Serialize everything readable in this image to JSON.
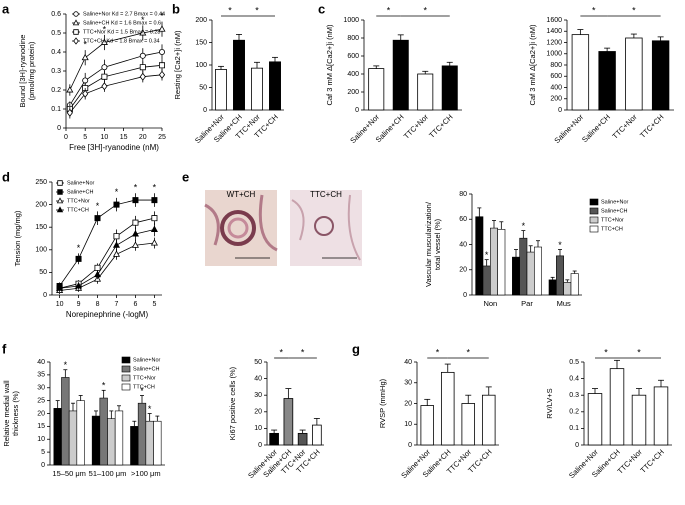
{
  "chart_data": [
    {
      "type": "line",
      "panel_label": "a",
      "ylabel": [
        "Bound [3H]-ryanodine",
        "(pmol/mg protein)"
      ],
      "xlabel": "Free [3H]-ryanodine (nM)",
      "x": [
        1,
        5,
        10,
        20,
        25
      ],
      "xlim": [
        0,
        25
      ],
      "xticks": [
        0,
        5,
        10,
        15,
        20,
        25
      ],
      "ylim": [
        0,
        0.6
      ],
      "yticks": [
        0,
        0.1,
        0.2,
        0.3,
        0.4,
        0.5,
        0.6
      ],
      "legend": "upper left",
      "series": [
        {
          "name": "Saline+Nor Kd = 2.7 Bmax = 0.44",
          "marker": "circle",
          "fill": "#ffffff",
          "color": "#000000",
          "values": [
            0.12,
            0.25,
            0.32,
            0.38,
            0.4
          ],
          "errors": [
            0.02,
            0.04,
            0.04,
            0.04,
            0.04
          ]
        },
        {
          "name": "Saline+CH Kd = 1.6 Bmax = 0.6",
          "marker": "triangle",
          "fill": "#ffffff",
          "color": "#000000",
          "values": [
            0.2,
            0.37,
            0.45,
            0.5,
            0.52
          ],
          "errors": [
            0.03,
            0.04,
            0.04,
            0.04,
            0.04
          ]
        },
        {
          "name": "TTC+Nor Kd = 1.5 Bmax = 0.28",
          "marker": "square",
          "fill": "#ffffff",
          "color": "#000000",
          "values": [
            0.1,
            0.21,
            0.27,
            0.32,
            0.33
          ],
          "errors": [
            0.03,
            0.03,
            0.03,
            0.03,
            0.03
          ]
        },
        {
          "name": "TTC+CH Kd = 1.8 Bmax = 0.34",
          "marker": "diamond",
          "fill": "#ffffff",
          "color": "#000000",
          "values": [
            0.08,
            0.18,
            0.22,
            0.27,
            0.28
          ],
          "errors": [
            0.03,
            0.03,
            0.03,
            0.03,
            0.03
          ]
        }
      ],
      "annotations": [
        {
          "series": 1,
          "index": 1,
          "text": "*"
        },
        {
          "series": 1,
          "index": 2,
          "text": "*"
        },
        {
          "series": 1,
          "index": 3,
          "text": "*"
        },
        {
          "series": 1,
          "index": 4,
          "text": "*"
        }
      ]
    },
    {
      "type": "bar",
      "panel_label": "b",
      "ylabel": "Resting [Ca2+]i (nM)",
      "categories": [
        "Saline+Nor",
        "Saline+CH",
        "TTC+Nor",
        "TTC+CH"
      ],
      "values": [
        90,
        155,
        93,
        107
      ],
      "errors": [
        7,
        13,
        13,
        10
      ],
      "colors": [
        "#ffffff",
        "#000000",
        "#ffffff",
        "#000000"
      ],
      "ylim": [
        0,
        200
      ],
      "yticks": [
        0,
        50,
        100,
        150,
        200
      ],
      "comparisons": [
        {
          "from": 0,
          "to": 1,
          "text": "*"
        },
        {
          "from": 1,
          "to": 3,
          "text": "*"
        }
      ]
    },
    {
      "type": "bar",
      "panel_label": "c",
      "ylabel": "Caf 3 mM Δ[Ca2+]i (nM)",
      "categories": [
        "Saline+Nor",
        "Saline+CH",
        "TTC+Nor",
        "TTC+CH"
      ],
      "values": [
        460,
        775,
        400,
        490
      ],
      "errors": [
        30,
        60,
        30,
        40
      ],
      "colors": [
        "#ffffff",
        "#000000",
        "#ffffff",
        "#000000"
      ],
      "ylim": [
        0,
        1000
      ],
      "yticks": [
        0,
        200,
        400,
        600,
        800,
        1000
      ],
      "comparisons": [
        {
          "from": 0,
          "to": 1,
          "text": "*"
        },
        {
          "from": 1,
          "to": 3,
          "text": "*"
        }
      ]
    },
    {
      "type": "bar",
      "ylabel": "Caf 3 mM Δ[Ca2+]i (nM)",
      "categories": [
        "Saline+Nor",
        "Saline+CH",
        "TTC+Nor",
        "TTC+CH"
      ],
      "values": [
        1340,
        1040,
        1280,
        1230
      ],
      "errors": [
        90,
        60,
        70,
        70
      ],
      "colors": [
        "#ffffff",
        "#000000",
        "#ffffff",
        "#000000"
      ],
      "ylim": [
        0,
        1600
      ],
      "yticks": [
        0,
        200,
        400,
        600,
        800,
        1000,
        1200,
        1400,
        1600
      ],
      "comparisons": [
        {
          "from": 0,
          "to": 1,
          "text": "*"
        },
        {
          "from": 1,
          "to": 3,
          "text": "*"
        }
      ]
    },
    {
      "type": "line",
      "panel_label": "d",
      "ylabel": "Tension (mg/mg)",
      "xlabel": "Norepinephrine (-logM)",
      "x": [
        -10,
        -9,
        -8,
        -7,
        -6,
        -5
      ],
      "xlim": [
        -10.4,
        -4.6
      ],
      "xticks": [
        {
          "value": -10,
          "label": "10"
        },
        {
          "value": -9,
          "label": "9"
        },
        {
          "value": -8,
          "label": "8"
        },
        {
          "value": -7,
          "label": "7"
        },
        {
          "value": -6,
          "label": "6"
        },
        {
          "value": -5,
          "label": "5"
        }
      ],
      "ylim": [
        0,
        250
      ],
      "yticks": [
        0,
        50,
        100,
        150,
        200,
        250
      ],
      "legend": "upper left",
      "series": [
        {
          "name": "Saline+Nor",
          "marker": "square",
          "fill": "#ffffff",
          "color": "#000000",
          "values": [
            15,
            25,
            60,
            130,
            160,
            170
          ],
          "errors": [
            8,
            8,
            10,
            15,
            15,
            15
          ]
        },
        {
          "name": "Saline+CH",
          "marker": "square",
          "fill": "#000000",
          "color": "#000000",
          "values": [
            20,
            80,
            170,
            200,
            210,
            210
          ],
          "errors": [
            8,
            12,
            15,
            15,
            15,
            15
          ]
        },
        {
          "name": "TTC+Nor",
          "marker": "triangle",
          "fill": "#ffffff",
          "color": "#000000",
          "values": [
            10,
            15,
            35,
            90,
            110,
            115
          ],
          "errors": [
            8,
            8,
            10,
            12,
            12,
            12
          ]
        },
        {
          "name": "TTC+CH",
          "marker": "triangle",
          "fill": "#000000",
          "color": "#000000",
          "values": [
            15,
            20,
            45,
            110,
            135,
            145
          ],
          "errors": [
            8,
            8,
            10,
            12,
            15,
            15
          ]
        }
      ],
      "annotations": [
        {
          "series": 1,
          "index": 1,
          "text": "*"
        },
        {
          "series": 1,
          "index": 2,
          "text": "*"
        },
        {
          "series": 1,
          "index": 3,
          "text": "*"
        },
        {
          "series": 1,
          "index": 4,
          "text": "*"
        },
        {
          "series": 1,
          "index": 5,
          "text": "*"
        }
      ]
    },
    {
      "type": "grouped_bar",
      "panel_label": "e",
      "image_labels": [
        "WT+CH",
        "TTC+CH"
      ],
      "ylabel": [
        "Vascular muscularization/",
        "total vessel (%)"
      ],
      "categories": [
        "Non",
        "Par",
        "Mus"
      ],
      "ylim": [
        0,
        80
      ],
      "yticks": [
        0,
        20,
        40,
        60,
        80
      ],
      "legend": "right",
      "series": [
        {
          "name": "Saline+Nor",
          "color": "#000000",
          "values": [
            62,
            30,
            12
          ],
          "errors": [
            7,
            6,
            2
          ]
        },
        {
          "name": "Saline+CH",
          "color": "#555555",
          "values": [
            23,
            45,
            31
          ],
          "errors": [
            5,
            6,
            5
          ]
        },
        {
          "name": "TTC+Nor",
          "color": "#cccccc",
          "values": [
            53,
            34,
            10
          ],
          "errors": [
            6,
            5,
            2
          ]
        },
        {
          "name": "TTC+CH",
          "color": "#ffffff",
          "values": [
            52,
            38,
            17
          ],
          "errors": [
            6,
            5,
            2
          ]
        }
      ],
      "annotations": [
        {
          "series": 1,
          "index": 0,
          "text": "*"
        },
        {
          "series": 1,
          "index": 1,
          "text": "*"
        },
        {
          "series": 1,
          "index": 2,
          "text": "*"
        }
      ]
    },
    {
      "type": "grouped_bar",
      "panel_label": "f",
      "ylabel": [
        "Relative medial wall",
        "thickness (%)"
      ],
      "categories": [
        "15–50 μm",
        "51–100 μm",
        ">100 μm"
      ],
      "ylim": [
        0,
        40
      ],
      "yticks": [
        0,
        5,
        10,
        15,
        20,
        25,
        30,
        35,
        40
      ],
      "legend": "upper right",
      "series": [
        {
          "name": "Saline+Nor",
          "color": "#000000",
          "values": [
            22,
            19,
            15
          ],
          "errors": [
            3,
            2,
            2
          ]
        },
        {
          "name": "Saline+CH",
          "color": "#777777",
          "values": [
            34,
            26,
            24
          ],
          "errors": [
            3,
            3,
            3
          ]
        },
        {
          "name": "TTC+Nor",
          "color": "#cccccc",
          "values": [
            21,
            18,
            17
          ],
          "errors": [
            3,
            3,
            3
          ]
        },
        {
          "name": "TTC+CH",
          "color": "#ffffff",
          "values": [
            25,
            21,
            17
          ],
          "errors": [
            2,
            2,
            2
          ]
        }
      ],
      "annotations": [
        {
          "series": 1,
          "index": 0,
          "text": "*"
        },
        {
          "series": 1,
          "index": 1,
          "text": "*"
        },
        {
          "series": 1,
          "index": 2,
          "text": "*"
        },
        {
          "series": 2,
          "index": 2,
          "text": "*"
        }
      ]
    },
    {
      "type": "bar",
      "ylabel": "Ki67 positive cells (%)",
      "categories": [
        "Saline+Nor",
        "Saline+CH",
        "TTC+Nor",
        "TTC+CH"
      ],
      "values": [
        7,
        28,
        7,
        12
      ],
      "errors": [
        2,
        6,
        2,
        4
      ],
      "colors": [
        "#000000",
        "#888888",
        "#555555",
        "#ffffff"
      ],
      "ylim": [
        0,
        50
      ],
      "yticks": [
        0,
        10,
        20,
        30,
        40,
        50
      ],
      "comparisons": [
        {
          "from": 0,
          "to": 1,
          "text": "*"
        },
        {
          "from": 1,
          "to": 3,
          "text": "*"
        }
      ]
    },
    {
      "type": "bar",
      "panel_label": "g",
      "ylabel": "RVSP (mmHg)",
      "categories": [
        "Saline+Nor",
        "Saline+CH",
        "TTC+Nor",
        "TTC+CH"
      ],
      "values": [
        19,
        35,
        20,
        24
      ],
      "errors": [
        3,
        4,
        4,
        4
      ],
      "colors": [
        "#ffffff",
        "#ffffff",
        "#ffffff",
        "#ffffff"
      ],
      "ylim": [
        0,
        40
      ],
      "yticks": [
        0,
        10,
        20,
        30,
        40
      ],
      "comparisons": [
        {
          "from": 0,
          "to": 1,
          "text": "*"
        },
        {
          "from": 1,
          "to": 3,
          "text": "*"
        }
      ]
    },
    {
      "type": "bar",
      "ylabel": "RV/LV+S",
      "categories": [
        "Saline+Nor",
        "Saline+CH",
        "TTC+Nor",
        "TTC+CH"
      ],
      "values": [
        0.31,
        0.46,
        0.3,
        0.35
      ],
      "errors": [
        0.03,
        0.05,
        0.04,
        0.04
      ],
      "colors": [
        "#ffffff",
        "#ffffff",
        "#ffffff",
        "#ffffff"
      ],
      "ylim": [
        0,
        0.5
      ],
      "yticks": [
        0,
        0.1,
        0.2,
        0.3,
        0.4,
        0.5
      ],
      "comparisons": [
        {
          "from": 0,
          "to": 1,
          "text": "*"
        },
        {
          "from": 1,
          "to": 3,
          "text": "*"
        }
      ]
    }
  ]
}
